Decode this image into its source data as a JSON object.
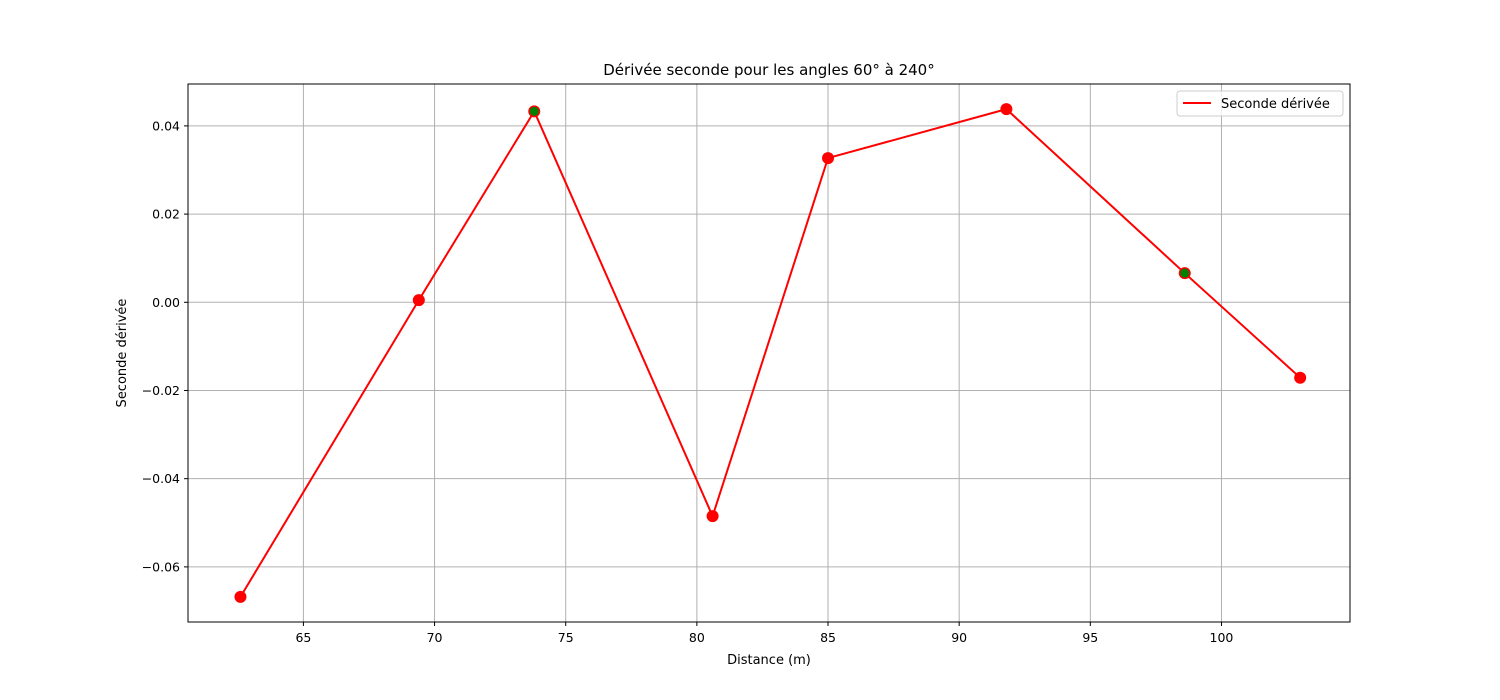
{
  "chart_data": {
    "type": "line",
    "title": "Dérivée seconde pour les angles 60° à 240°",
    "xlabel": "Distance (m)",
    "ylabel": "Seconde dérivée",
    "xlim": [
      60.6,
      104.9
    ],
    "ylim": [
      -0.0725,
      0.0495
    ],
    "xticks": [
      65,
      70,
      75,
      80,
      85,
      90,
      95,
      100
    ],
    "xtick_labels": [
      "65",
      "70",
      "75",
      "80",
      "85",
      "90",
      "95",
      "100"
    ],
    "yticks": [
      -0.06,
      -0.04,
      -0.02,
      0.0,
      0.02,
      0.04
    ],
    "ytick_labels": [
      "−0.06",
      "−0.04",
      "−0.02",
      "0.00",
      "0.02",
      "0.04"
    ],
    "grid": true,
    "legend_position": "upper right",
    "series": [
      {
        "name": "Seconde dérivée",
        "color": "#ff0000",
        "x": [
          62.6,
          69.4,
          73.8,
          80.6,
          85.0,
          91.8,
          98.6,
          103.0
        ],
        "y": [
          -0.0668,
          0.0005,
          0.0433,
          -0.0485,
          0.0327,
          0.0438,
          0.0066,
          -0.0171
        ]
      }
    ],
    "highlighted_points": {
      "color": "#008000",
      "x": [
        73.8,
        98.6
      ],
      "y": [
        0.0433,
        0.0066
      ]
    }
  }
}
